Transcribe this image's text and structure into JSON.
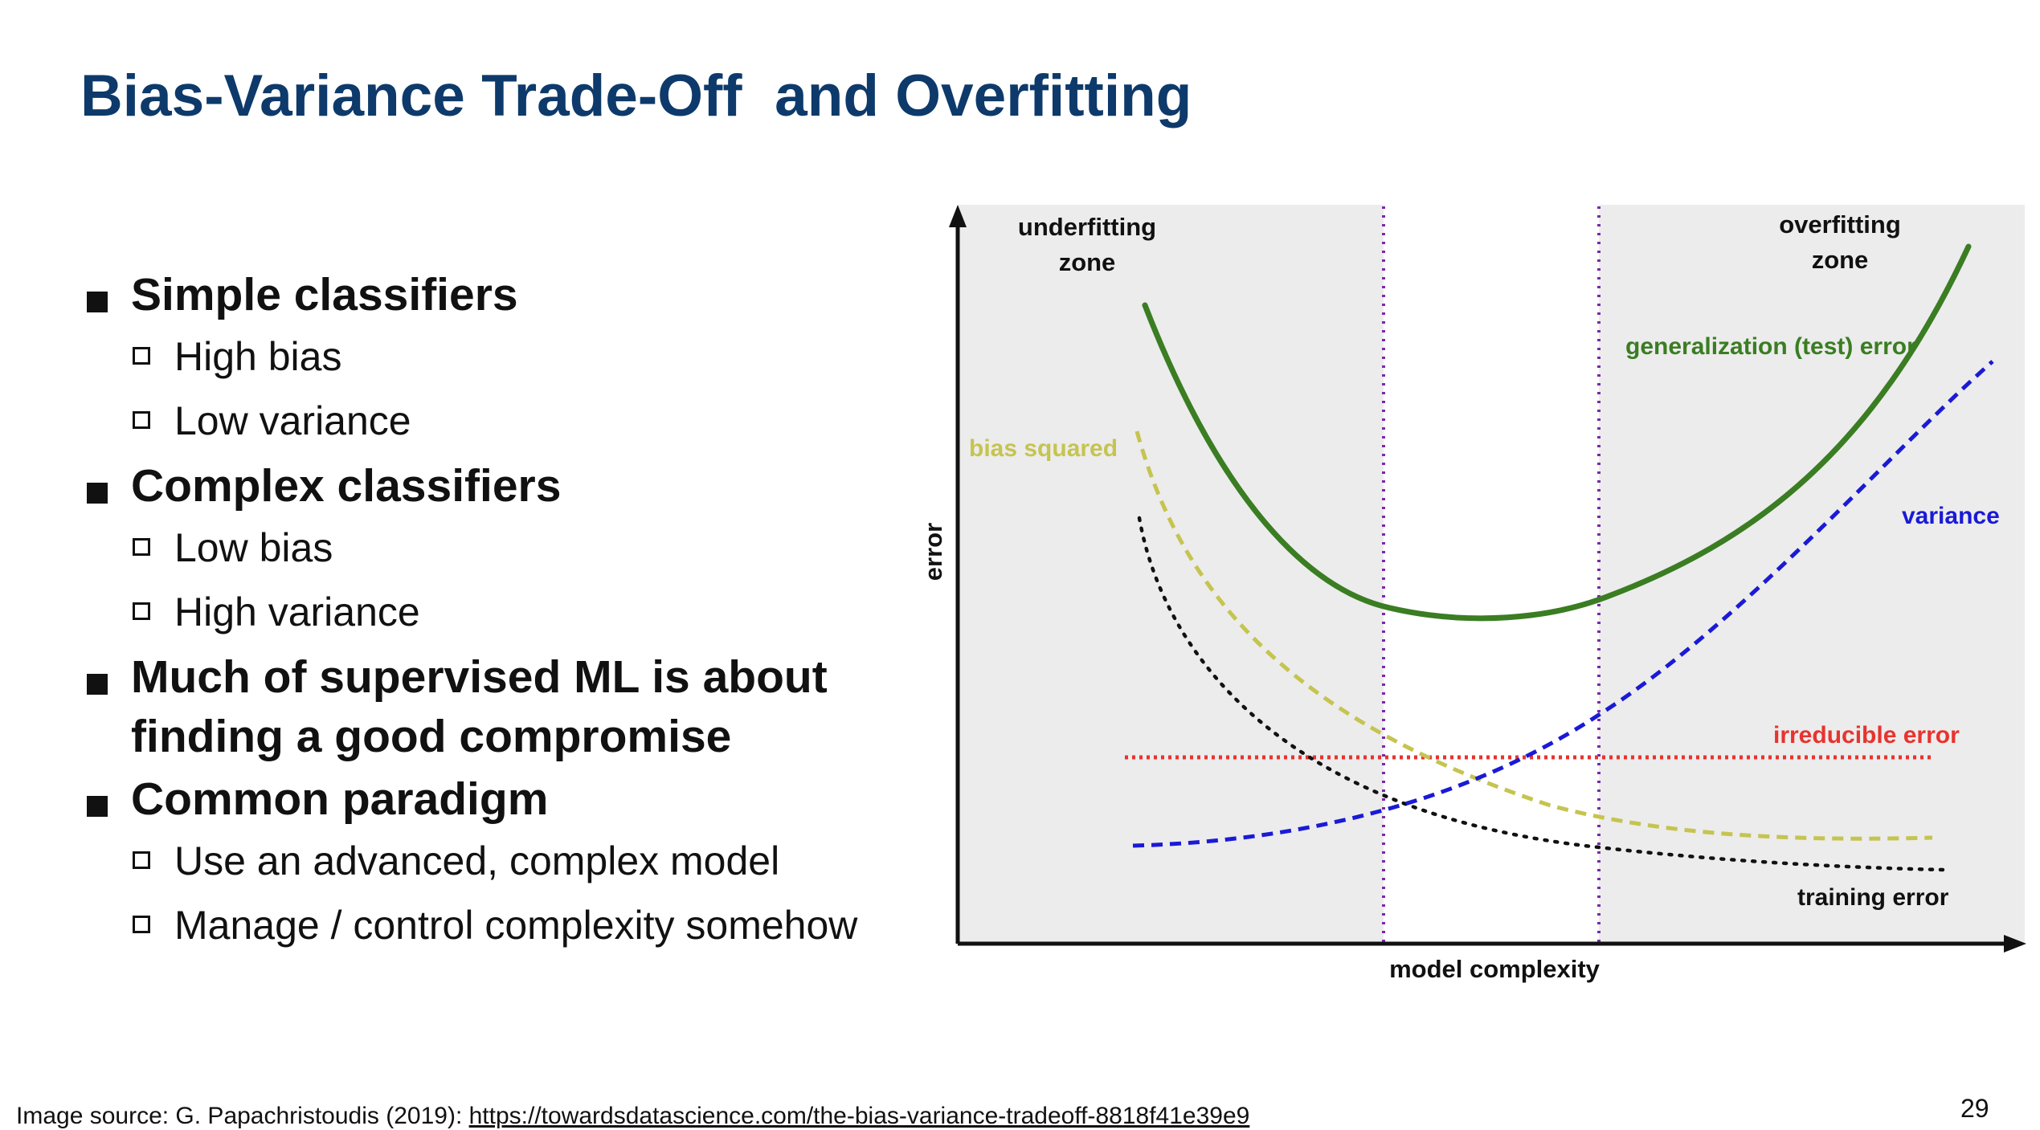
{
  "slide": {
    "title": "Bias-Variance Trade-Off  and Overfitting",
    "page_number": "29"
  },
  "bullets": [
    {
      "text": "Simple classifiers",
      "children": [
        "High bias",
        "Low variance"
      ]
    },
    {
      "text": "Complex classifiers",
      "children": [
        "Low bias",
        "High variance"
      ]
    },
    {
      "text": "Much of supervised ML is about finding a good compromise",
      "line1": "Much of supervised ML is about",
      "line2": "finding a good compromise",
      "children": []
    },
    {
      "text": "Common paradigm",
      "children": [
        "Use an advanced, complex model",
        "Manage / control complexity somehow"
      ]
    }
  ],
  "figure": {
    "y_axis_label": "error",
    "x_axis_label": "model complexity",
    "zone_left_line1": "underfitting",
    "zone_left_line2": "zone",
    "zone_right_line1": "overfitting",
    "zone_right_line2": "zone",
    "curves": {
      "generalization": {
        "label": "generalization (test) error",
        "color": "#3a7d22"
      },
      "bias": {
        "label": "bias squared",
        "color": "#c5c450"
      },
      "variance": {
        "label": "variance",
        "color": "#1a1ad6"
      },
      "irreducible": {
        "label": "irreducible error",
        "color": "#e8332f"
      },
      "training": {
        "label": "training error",
        "color": "#111111"
      }
    },
    "divider_color": "#7a2aa8",
    "zone_fill": "#ececec"
  },
  "footer": {
    "prefix": "Image source: G. Papachristoudis (2019): ",
    "link": "https://towardsdatascience.com/the-bias-variance-tradeoff-8818f41e39e9"
  }
}
